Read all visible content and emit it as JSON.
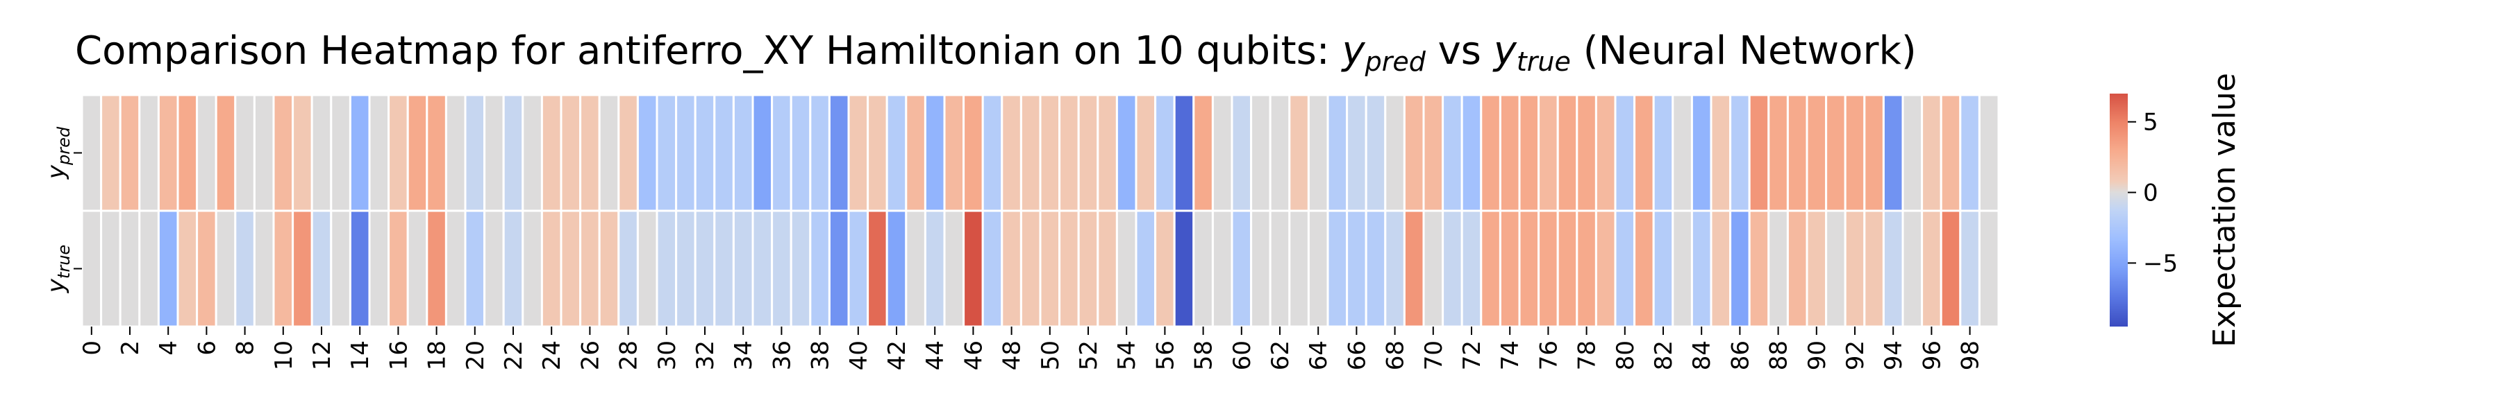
{
  "chart_data": {
    "type": "heatmap",
    "title_parts": [
      "Comparison Heatmap for antiferro_XY Hamiltonian on 10 qubits: ",
      "y",
      "pred",
      " vs ",
      "y",
      "true",
      " (Neural Network)"
    ],
    "row_labels": [
      {
        "base": "y",
        "sub": "pred"
      },
      {
        "base": "y",
        "sub": "true"
      }
    ],
    "x_tick_labels": [
      "0",
      "2",
      "4",
      "6",
      "8",
      "10",
      "12",
      "14",
      "16",
      "18",
      "20",
      "22",
      "24",
      "26",
      "28",
      "30",
      "32",
      "34",
      "36",
      "38",
      "40",
      "42",
      "44",
      "46",
      "48",
      "50",
      "52",
      "54",
      "56",
      "58",
      "60",
      "62",
      "64",
      "66",
      "68",
      "70",
      "72",
      "74",
      "76",
      "78",
      "80",
      "82",
      "84",
      "86",
      "88",
      "90",
      "92",
      "94",
      "96",
      "98"
    ],
    "num_columns": 100,
    "values": {
      "y_pred": [
        0,
        1,
        2,
        0,
        2,
        3,
        0,
        3,
        0,
        0,
        2,
        1,
        0,
        0,
        -4,
        0,
        1,
        3,
        3,
        0,
        -1,
        0,
        -1,
        0,
        1,
        1,
        1,
        0,
        1,
        -3,
        -2,
        -2,
        -2,
        -2,
        -2,
        -5,
        -2,
        -2,
        -2,
        -6,
        1,
        1,
        -2,
        2,
        -4,
        2,
        3,
        -2,
        1,
        1,
        1,
        1,
        1,
        1,
        -4,
        1,
        -2,
        -8,
        3,
        0,
        -1,
        0,
        0,
        1,
        0,
        -2,
        -1,
        -1,
        0,
        2,
        2,
        -2,
        -3,
        3,
        3,
        3,
        2,
        3,
        3,
        2,
        -2,
        3,
        -2,
        0,
        -4,
        1,
        -2,
        4,
        3,
        3,
        3,
        3,
        3,
        3,
        -6,
        0,
        1,
        2,
        -2,
        0
      ],
      "y_true": [
        0,
        0,
        0,
        0,
        -4,
        1,
        2,
        0,
        -1,
        0,
        2,
        4,
        -1,
        0,
        -7,
        0,
        2,
        0,
        4,
        0,
        -2,
        0,
        -1,
        0,
        1,
        1,
        1,
        1,
        -1,
        0,
        -1,
        -1,
        -1,
        -1,
        -1,
        -1,
        -1,
        -1,
        -2,
        -6,
        -2,
        6,
        -5,
        0,
        -1,
        0,
        7,
        -2,
        1,
        1,
        1,
        1,
        1,
        1,
        0,
        -2,
        1,
        -9,
        0,
        0,
        -2,
        0,
        0,
        0,
        0,
        -2,
        -2,
        -2,
        -1,
        4,
        0,
        -1,
        -1,
        3,
        3,
        3,
        3,
        3,
        3,
        2,
        -2,
        3,
        -2,
        0,
        -2,
        1,
        -5,
        2,
        0,
        2,
        1,
        0,
        1,
        1,
        -1,
        0,
        1,
        5,
        -1,
        0
      ]
    },
    "color_range": [
      -9.5,
      7
    ],
    "colormap": "coolwarm",
    "colorbar": {
      "label": "Expectation value",
      "ticks": [
        5,
        0,
        -5
      ],
      "tick_labels": [
        "5",
        "0",
        "−5"
      ]
    },
    "grid": false,
    "cell_separator_color": "#ffffff"
  }
}
